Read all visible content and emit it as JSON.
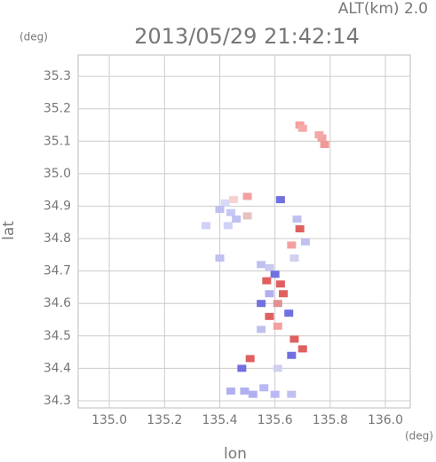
{
  "chart_data": {
    "type": "scatter",
    "title": "2013/05/29 21:42:14",
    "subtitle": "ALT(km) 2.0",
    "ylabel": "lat",
    "xlabel": "lon",
    "y_unit": "(deg)",
    "x_unit": "(deg)",
    "x": [
      135.69,
      135.7,
      135.77,
      135.78,
      135.76,
      135.42,
      135.45,
      135.5,
      135.4,
      135.44,
      135.46,
      135.43,
      135.5,
      135.62,
      135.68,
      135.69,
      135.71,
      135.66,
      135.67,
      135.55,
      135.58,
      135.6,
      135.57,
      135.62,
      135.58,
      135.63,
      135.55,
      135.61,
      135.58,
      135.65,
      135.61,
      135.55,
      135.67,
      135.7,
      135.66,
      135.61,
      135.51,
      135.48,
      135.56,
      135.52,
      135.6,
      135.44,
      135.49,
      135.66,
      135.35,
      135.4
    ],
    "y": [
      35.15,
      35.14,
      35.11,
      35.09,
      35.12,
      34.91,
      34.92,
      34.93,
      34.89,
      34.88,
      34.86,
      34.84,
      34.87,
      34.92,
      34.86,
      34.83,
      34.79,
      34.78,
      34.74,
      34.72,
      34.71,
      34.69,
      34.67,
      34.66,
      34.63,
      34.63,
      34.6,
      34.6,
      34.56,
      34.57,
      34.53,
      34.52,
      34.49,
      34.46,
      34.44,
      34.4,
      34.43,
      34.4,
      34.34,
      34.32,
      34.32,
      34.33,
      34.33,
      34.32,
      34.84,
      34.74
    ],
    "colors": [
      "#f4a0a0",
      "#f4a8a8",
      "#f4a0a0",
      "#f09898",
      "#f4a8a8",
      "#d8d8f8",
      "#f8d0d0",
      "#f4a0a0",
      "#c0c0f0",
      "#c8c8f4",
      "#c0c0f0",
      "#d0d0f8",
      "#e8c0c0",
      "#7070e0",
      "#c0c0f0",
      "#e06060",
      "#c0c0f0",
      "#f4a0a0",
      "#d0d0f0",
      "#c0c0f0",
      "#c8c8f0",
      "#7070e0",
      "#e06060",
      "#e06060",
      "#b0b0f0",
      "#e06060",
      "#7070e0",
      "#e09090",
      "#e06060",
      "#7070e0",
      "#f4a0a0",
      "#c0c0f0",
      "#e06060",
      "#e06060",
      "#7070e0",
      "#d0d0f0",
      "#e06060",
      "#7070e0",
      "#b8b8f4",
      "#b0b0f0",
      "#b8b8f4",
      "#b0b0f0",
      "#b0b0f0",
      "#c0c0f0",
      "#d0d0f8",
      "#c0c0f0"
    ],
    "xlim": [
      134.887,
      136.09
    ],
    "ylim": [
      34.278,
      35.366
    ],
    "xticks": [
      {
        "value": 135.0,
        "label": "135.0"
      },
      135.2,
      135.4,
      135.6,
      135.8,
      {
        "value": 136.0,
        "label": "136.0"
      }
    ],
    "yticks": [
      35.3,
      35.2,
      35.1,
      {
        "value": 35.0,
        "label": "35.0"
      },
      34.9,
      34.8,
      34.7,
      34.6,
      34.5,
      34.4,
      34.3
    ],
    "grid": true
  }
}
